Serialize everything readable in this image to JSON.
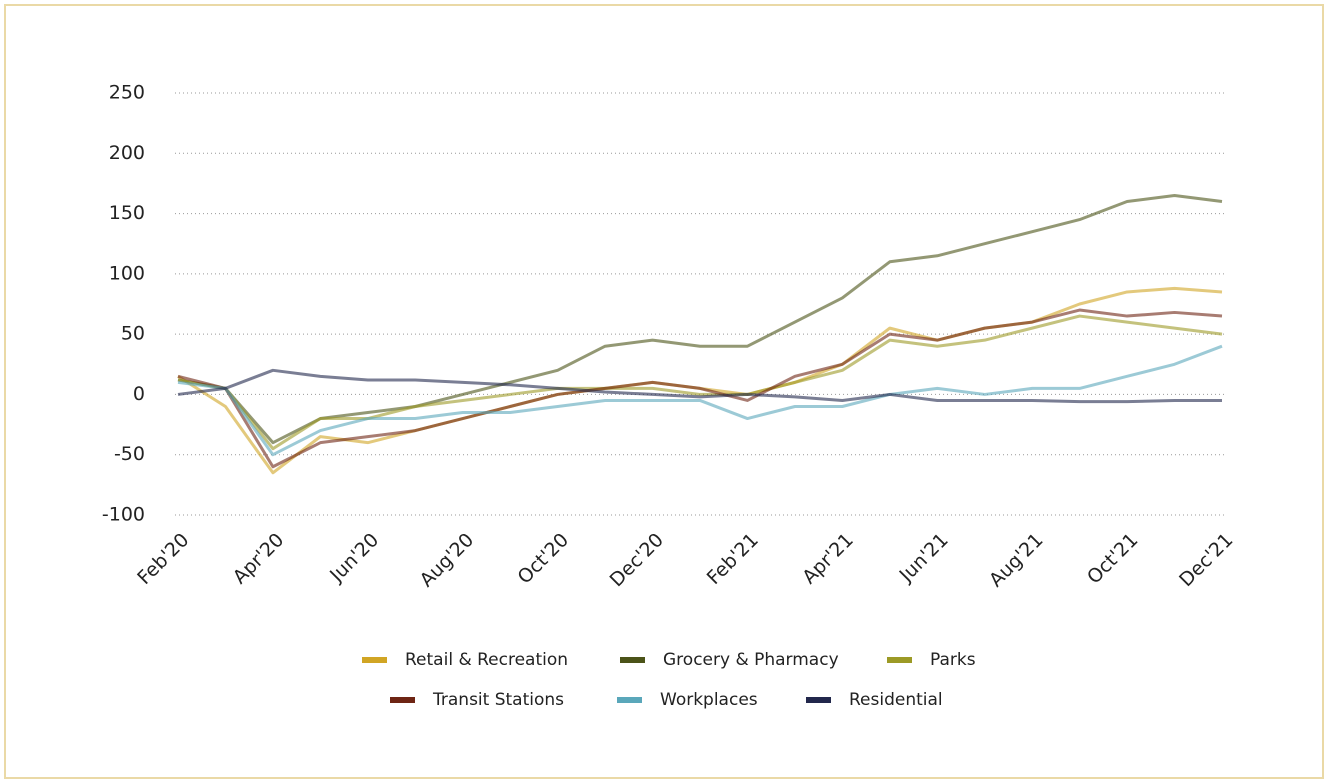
{
  "chart_data": {
    "type": "line",
    "categories": [
      "Feb'20",
      null,
      "Apr'20",
      null,
      "Jun'20",
      null,
      "Aug'20",
      null,
      "Oct'20",
      null,
      "Dec'20",
      null,
      "Feb'21",
      null,
      "Apr'21",
      null,
      "Jun'21",
      null,
      "Aug'21",
      null,
      "Oct'21",
      null,
      "Dec'21"
    ],
    "series": [
      {
        "name": "Retail & Recreation",
        "color": "#d1a524",
        "values": [
          15,
          -10,
          -65,
          -35,
          -40,
          -30,
          -20,
          -10,
          0,
          5,
          10,
          5,
          0,
          10,
          25,
          55,
          45,
          55,
          60,
          75,
          85,
          88,
          85
        ]
      },
      {
        "name": "Grocery & Pharmacy",
        "color": "#4b5318",
        "values": [
          12,
          5,
          -40,
          -20,
          -15,
          -10,
          0,
          10,
          20,
          40,
          45,
          40,
          40,
          60,
          80,
          110,
          115,
          125,
          135,
          145,
          160,
          165,
          160
        ]
      },
      {
        "name": "Parks",
        "color": "#9c9a26",
        "values": [
          12,
          5,
          -45,
          -20,
          -20,
          -10,
          -5,
          0,
          5,
          5,
          5,
          0,
          0,
          10,
          20,
          45,
          40,
          45,
          55,
          65,
          60,
          55,
          50
        ]
      },
      {
        "name": "Transit Stations",
        "color": "#6e2514",
        "values": [
          15,
          5,
          -60,
          -40,
          -35,
          -30,
          -20,
          -10,
          0,
          5,
          10,
          5,
          -5,
          15,
          25,
          50,
          45,
          55,
          60,
          70,
          65,
          68,
          65
        ]
      },
      {
        "name": "Workplaces",
        "color": "#5aa7ba",
        "values": [
          10,
          5,
          -50,
          -30,
          -20,
          -20,
          -15,
          -15,
          -10,
          -5,
          -5,
          -5,
          -20,
          -10,
          -10,
          0,
          5,
          0,
          5,
          5,
          15,
          25,
          40
        ]
      },
      {
        "name": "Residential",
        "color": "#22284c",
        "values": [
          0,
          5,
          20,
          15,
          12,
          12,
          10,
          8,
          5,
          2,
          0,
          -2,
          0,
          -2,
          -5,
          0,
          -5,
          -5,
          -5,
          -6,
          -6,
          -5,
          -5
        ]
      }
    ],
    "ylim": [
      -100,
      250
    ],
    "yticks": [
      -100,
      -50,
      0,
      50,
      100,
      150,
      200,
      250
    ],
    "grid": true
  }
}
